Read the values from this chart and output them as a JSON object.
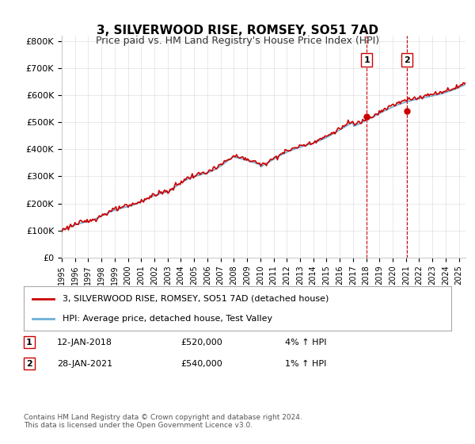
{
  "title": "3, SILVERWOOD RISE, ROMSEY, SO51 7AD",
  "subtitle": "Price paid vs. HM Land Registry's House Price Index (HPI)",
  "ylabel_ticks": [
    "£0",
    "£100K",
    "£200K",
    "£300K",
    "£400K",
    "£500K",
    "£600K",
    "£700K",
    "£800K"
  ],
  "ytick_values": [
    0,
    100000,
    200000,
    300000,
    400000,
    500000,
    600000,
    700000,
    800000
  ],
  "ylim": [
    0,
    820000
  ],
  "xlim_start": 1995.0,
  "xlim_end": 2025.5,
  "sale1_x": 2018.04,
  "sale1_y": 520000,
  "sale2_x": 2021.08,
  "sale2_y": 540000,
  "legend_line1": "3, SILVERWOOD RISE, ROMSEY, SO51 7AD (detached house)",
  "legend_line2": "HPI: Average price, detached house, Test Valley",
  "table_row1": [
    "1",
    "12-JAN-2018",
    "£520,000",
    "4% ↑ HPI"
  ],
  "table_row2": [
    "2",
    "28-JAN-2021",
    "£540,000",
    "1% ↑ HPI"
  ],
  "footnote": "Contains HM Land Registry data © Crown copyright and database right 2024.\nThis data is licensed under the Open Government Licence v3.0.",
  "hpi_color": "#6baed6",
  "price_color": "#cc0000",
  "shade_color": "#d6e8f5",
  "vline_color": "#cc0000",
  "background_color": "#ffffff",
  "grid_color": "#e0e0e0"
}
